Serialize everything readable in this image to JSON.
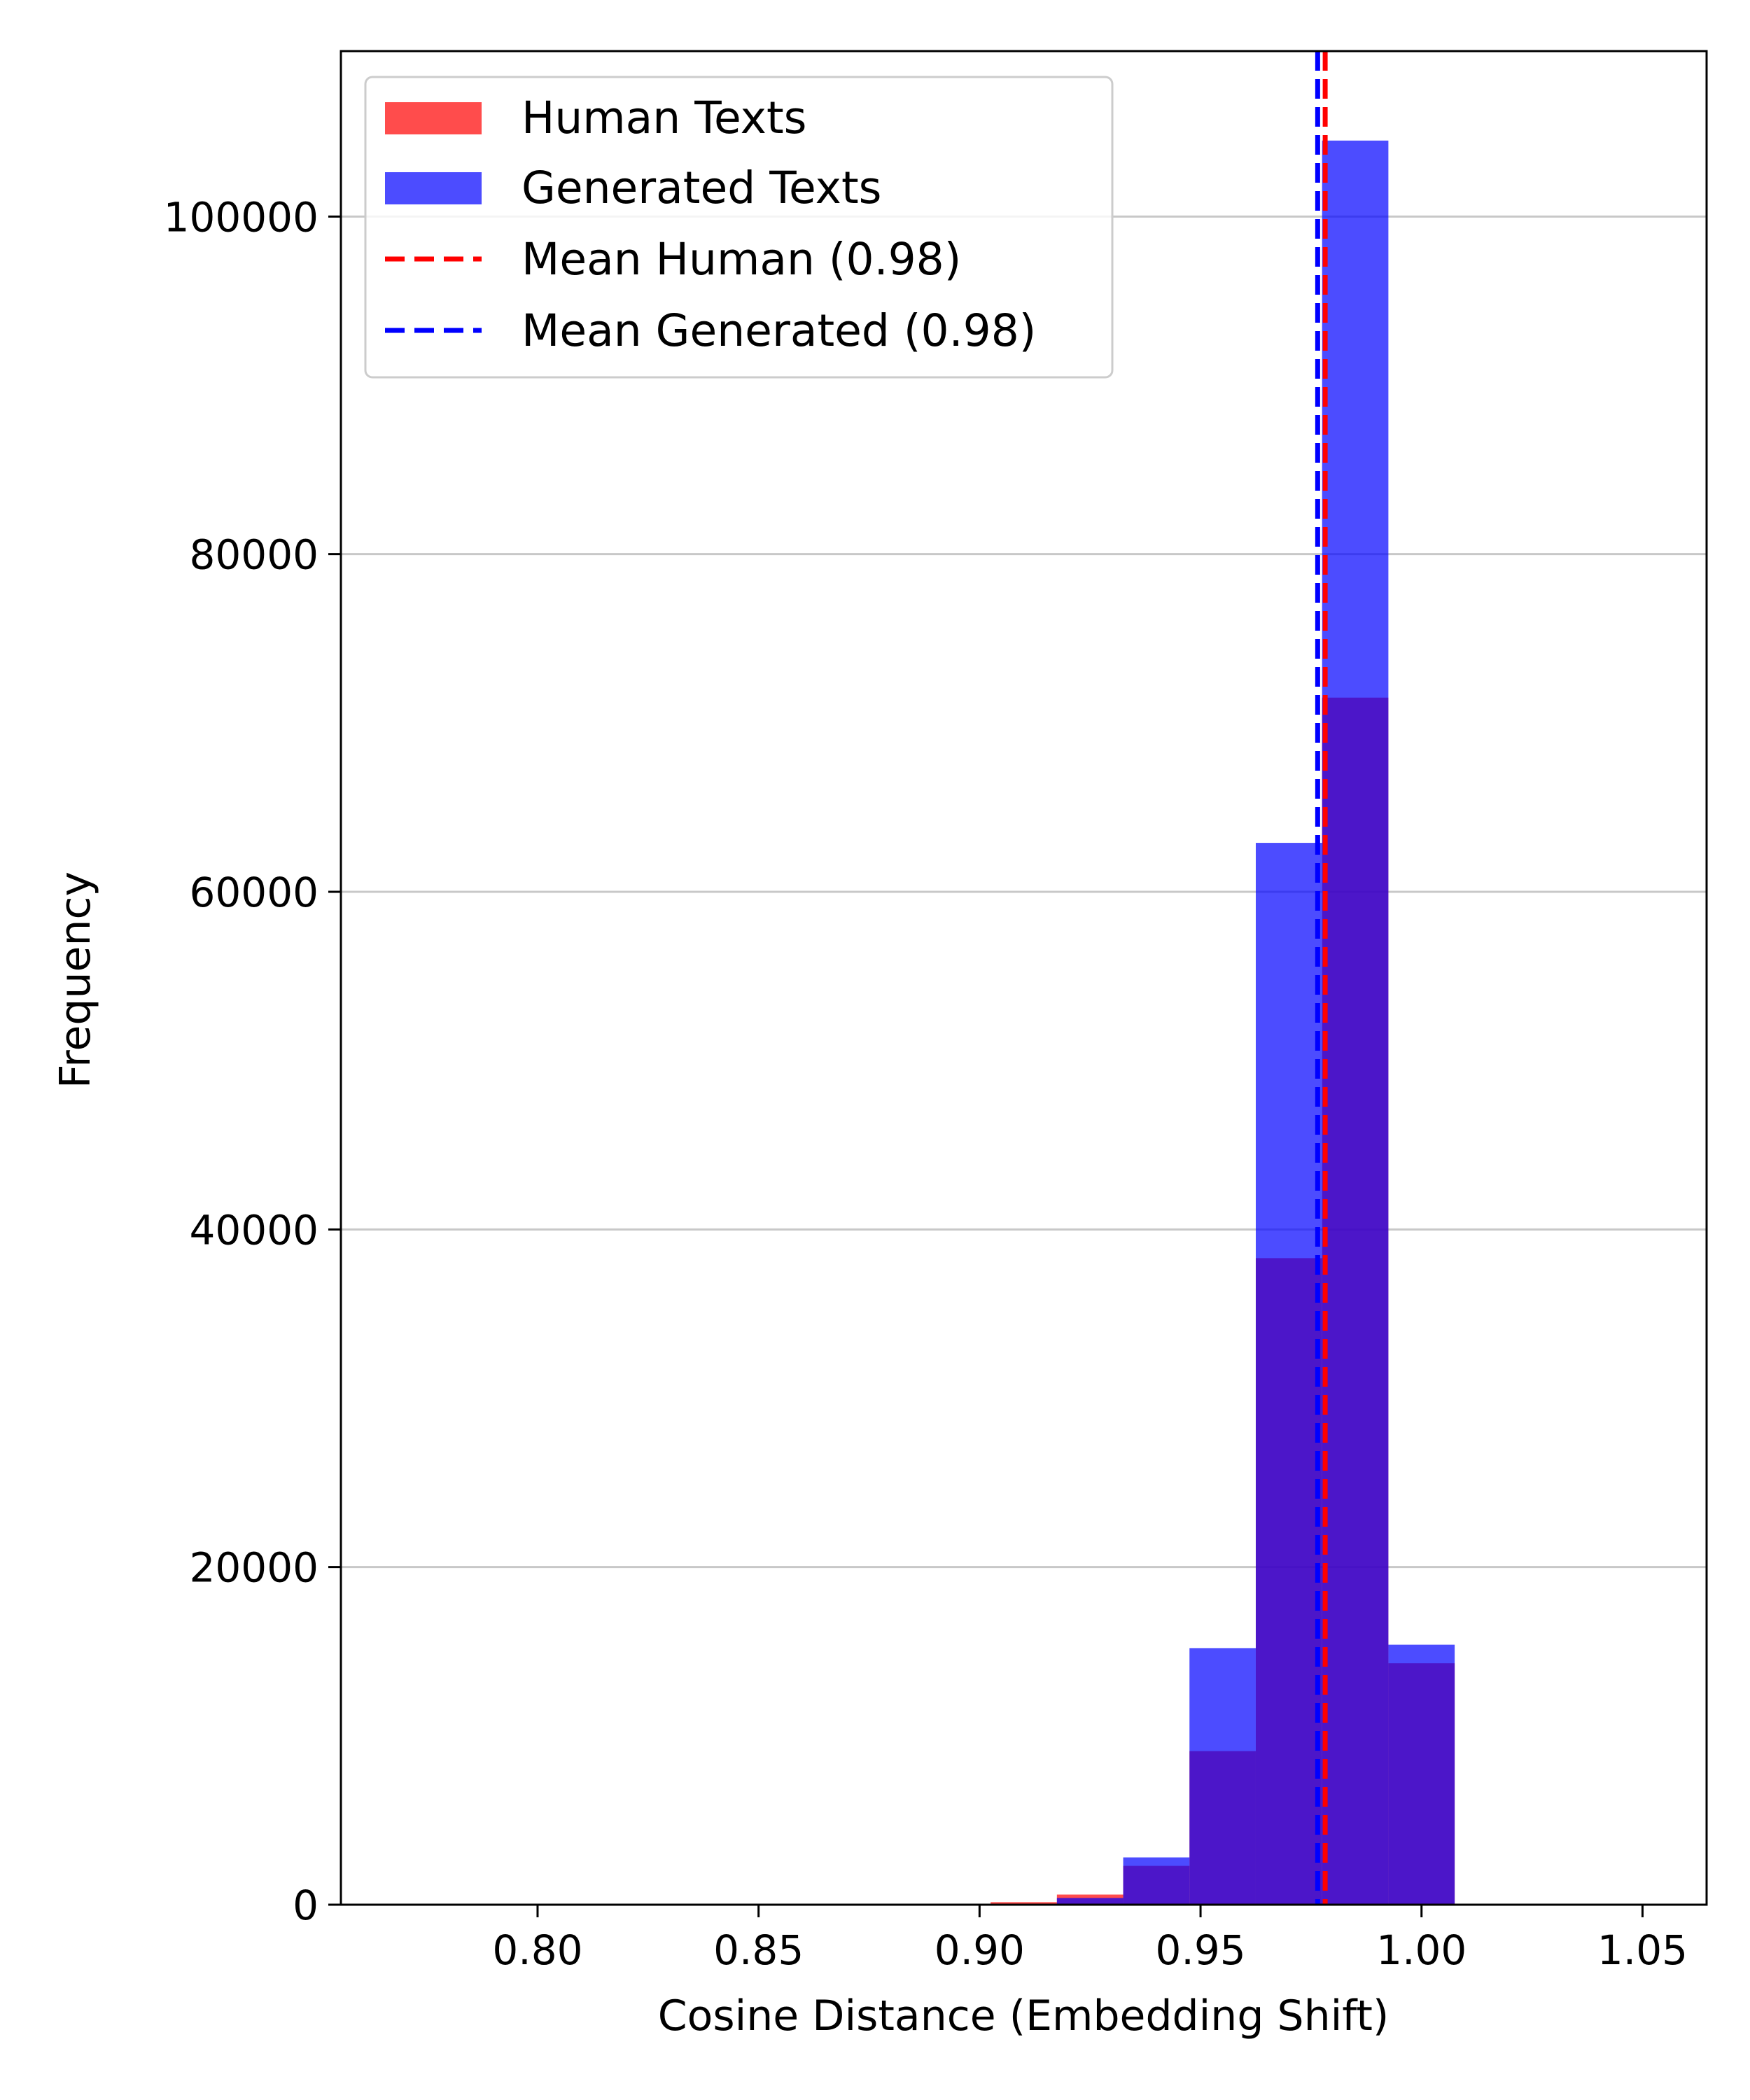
{
  "chart_data": {
    "type": "histogram",
    "xlabel": "Cosine Distance (Embedding Shift)",
    "ylabel": "Frequency",
    "xlim": [
      0.7555,
      1.0645
    ],
    "ylim": [
      0,
      109800
    ],
    "x_ticks": [
      0.8,
      0.85,
      0.9,
      0.95,
      1.0,
      1.05
    ],
    "x_tick_labels": [
      "0.80",
      "0.85",
      "0.90",
      "0.95",
      "1.00",
      "1.05"
    ],
    "y_ticks": [
      0,
      20000,
      40000,
      60000,
      80000,
      100000
    ],
    "y_tick_labels": [
      "0",
      "20000",
      "40000",
      "60000",
      "80000",
      "100000"
    ],
    "grid": "horizontal",
    "legend_position": "upper-left",
    "bin_edges": [
      0.9025,
      0.9175,
      0.9325,
      0.9475,
      0.9625,
      0.9775,
      0.9925,
      1.0075
    ],
    "series": [
      {
        "name": "Human Texts",
        "color": "#ff0000",
        "opacity": 0.7,
        "values": [
          150,
          600,
          2300,
          9100,
          38300,
          71500,
          14300
        ]
      },
      {
        "name": "Generated Texts",
        "color": "#0000ff",
        "opacity": 0.7,
        "values": [
          50,
          400,
          2800,
          15200,
          62900,
          104500,
          15400
        ]
      }
    ],
    "mean_lines": [
      {
        "name": "Mean Human (0.98)",
        "x": 0.9782,
        "color": "#ff0000",
        "style": "dashed"
      },
      {
        "name": "Mean Generated (0.98)",
        "x": 0.9765,
        "color": "#0000ff",
        "style": "dashed"
      }
    ]
  }
}
